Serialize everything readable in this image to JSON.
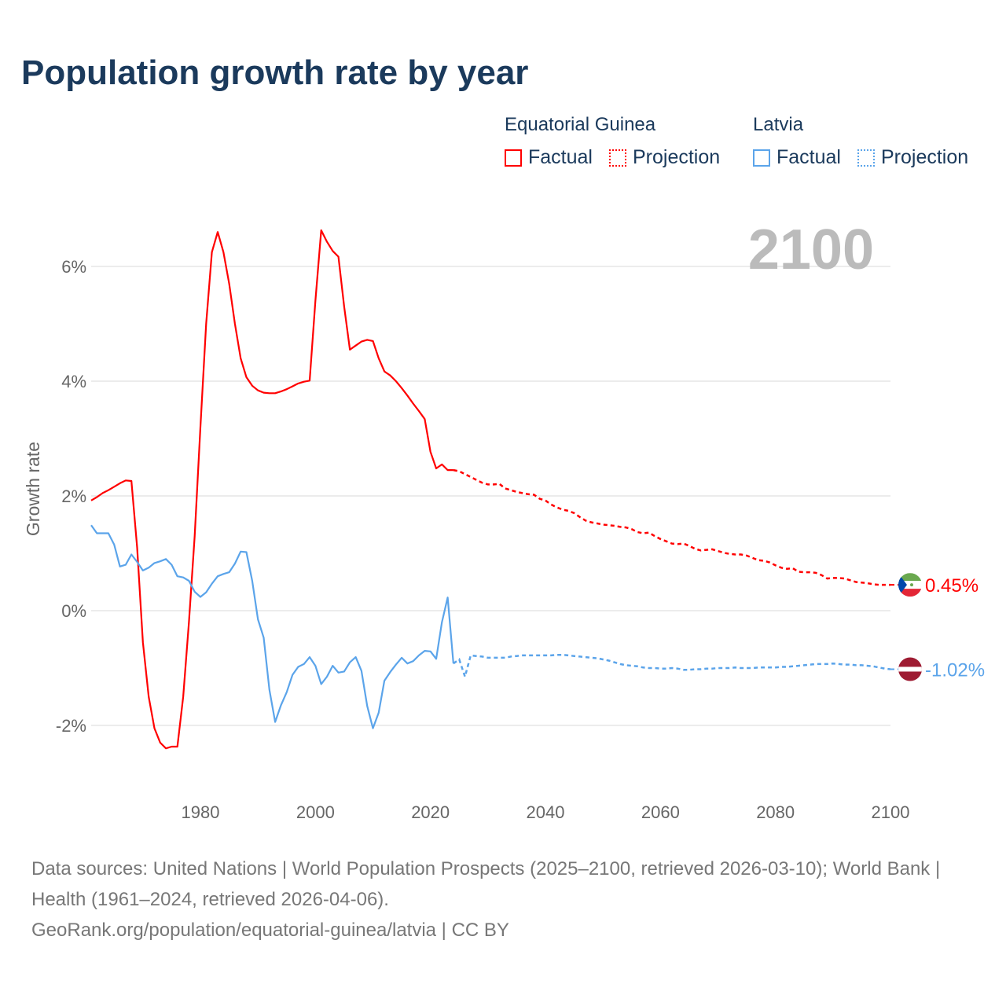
{
  "title": "Population growth rate by year",
  "legend": {
    "groups": [
      {
        "name": "Equatorial Guinea",
        "color": "#ff0000",
        "factual": "Factual",
        "projection": "Projection"
      },
      {
        "name": "Latvia",
        "color": "#5ba4ea",
        "factual": "Factual",
        "projection": "Projection"
      }
    ]
  },
  "year_display": "2100",
  "footer": {
    "sources": "Data sources: United Nations | World Population Prospects (2025–2100, retrieved 2026-03-10); World Bank | Health (1961–2024, retrieved 2026-04-06).",
    "link": "GeoRank.org/population/equatorial-guinea/latvia | CC BY"
  },
  "chart_data": {
    "type": "line",
    "title": "Population growth rate by year",
    "xlabel": "",
    "ylabel": "Growth rate",
    "xlim": [
      1961,
      2100
    ],
    "ylim": [
      -3,
      7
    ],
    "x_ticks": [
      1980,
      2000,
      2020,
      2040,
      2060,
      2080,
      2100
    ],
    "y_ticks": [
      -2,
      0,
      2,
      4,
      6
    ],
    "y_tick_labels": [
      "-2%",
      "0%",
      "2%",
      "4%",
      "6%"
    ],
    "grid": true,
    "legend_position": "top-right",
    "series": [
      {
        "name": "Equatorial Guinea",
        "color": "#ff0000",
        "end_label": "0.45%",
        "factual_start": 1961,
        "factual": [
          1.92,
          1.98,
          2.05,
          2.1,
          2.16,
          2.22,
          2.27,
          2.26,
          1.1,
          -0.55,
          -1.5,
          -2.05,
          -2.3,
          -2.4,
          -2.37,
          -2.37,
          -1.5,
          -0.2,
          1.3,
          3.2,
          5.0,
          6.25,
          6.6,
          6.25,
          5.7,
          5.0,
          4.4,
          4.07,
          3.92,
          3.84,
          3.8,
          3.79,
          3.79,
          3.82,
          3.86,
          3.91,
          3.96,
          3.99,
          4.01,
          5.4,
          6.63,
          6.43,
          6.27,
          6.17,
          5.3,
          4.55,
          4.62,
          4.69,
          4.72,
          4.7,
          4.4,
          4.17,
          4.1,
          4.0,
          3.88,
          3.75,
          3.61,
          3.48,
          3.34,
          2.77,
          2.48,
          2.55,
          2.45,
          2.45
        ],
        "projection_start": 2024,
        "projection": [
          2.45,
          2.43,
          2.38,
          2.33,
          2.28,
          2.23,
          2.2,
          2.2,
          2.21,
          2.13,
          2.1,
          2.07,
          2.05,
          2.03,
          2.02,
          1.95,
          1.92,
          1.85,
          1.8,
          1.76,
          1.74,
          1.7,
          1.63,
          1.57,
          1.54,
          1.52,
          1.5,
          1.49,
          1.48,
          1.46,
          1.45,
          1.42,
          1.37,
          1.35,
          1.36,
          1.3,
          1.25,
          1.21,
          1.17,
          1.16,
          1.17,
          1.13,
          1.08,
          1.05,
          1.06,
          1.07,
          1.04,
          1.01,
          0.99,
          0.98,
          0.98,
          0.96,
          0.92,
          0.88,
          0.87,
          0.84,
          0.79,
          0.75,
          0.73,
          0.74,
          0.68,
          0.67,
          0.67,
          0.66,
          0.62,
          0.56,
          0.57,
          0.57,
          0.56,
          0.53,
          0.5,
          0.49,
          0.48,
          0.46,
          0.45,
          0.45,
          0.45
        ]
      },
      {
        "name": "Latvia",
        "color": "#5ba4ea",
        "end_label": "-1.02%",
        "factual_start": 1961,
        "factual": [
          1.49,
          1.35,
          1.35,
          1.35,
          1.15,
          0.77,
          0.8,
          0.98,
          0.85,
          0.7,
          0.75,
          0.83,
          0.86,
          0.9,
          0.8,
          0.6,
          0.58,
          0.52,
          0.33,
          0.24,
          0.32,
          0.47,
          0.6,
          0.64,
          0.67,
          0.82,
          1.03,
          1.02,
          0.52,
          -0.15,
          -0.47,
          -1.38,
          -1.94,
          -1.65,
          -1.42,
          -1.12,
          -0.98,
          -0.93,
          -0.81,
          -0.96,
          -1.28,
          -1.15,
          -0.96,
          -1.08,
          -1.06,
          -0.9,
          -0.81,
          -1.05,
          -1.66,
          -2.05,
          -1.78,
          -1.22,
          -1.07,
          -0.94,
          -0.82,
          -0.92,
          -0.88,
          -0.78,
          -0.7,
          -0.71,
          -0.84,
          -0.2,
          0.23,
          -0.92
        ],
        "projection_start": 2024,
        "projection": [
          -0.92,
          -0.85,
          -1.15,
          -0.78,
          -0.79,
          -0.8,
          -0.82,
          -0.82,
          -0.82,
          -0.82,
          -0.8,
          -0.79,
          -0.78,
          -0.78,
          -0.78,
          -0.78,
          -0.78,
          -0.78,
          -0.77,
          -0.77,
          -0.78,
          -0.79,
          -0.8,
          -0.81,
          -0.82,
          -0.83,
          -0.85,
          -0.87,
          -0.9,
          -0.93,
          -0.95,
          -0.96,
          -0.97,
          -0.99,
          -1.0,
          -1.0,
          -1.01,
          -1.01,
          -1.0,
          -1.01,
          -1.03,
          -1.03,
          -1.02,
          -1.02,
          -1.01,
          -1.01,
          -1.0,
          -1.0,
          -1.0,
          -0.99,
          -1.0,
          -1.0,
          -1.0,
          -0.99,
          -0.99,
          -0.99,
          -0.99,
          -0.98,
          -0.98,
          -0.97,
          -0.96,
          -0.95,
          -0.94,
          -0.93,
          -0.93,
          -0.93,
          -0.92,
          -0.93,
          -0.94,
          -0.94,
          -0.95,
          -0.95,
          -0.96,
          -0.97,
          -0.99,
          -1.01,
          -1.02
        ]
      }
    ]
  }
}
